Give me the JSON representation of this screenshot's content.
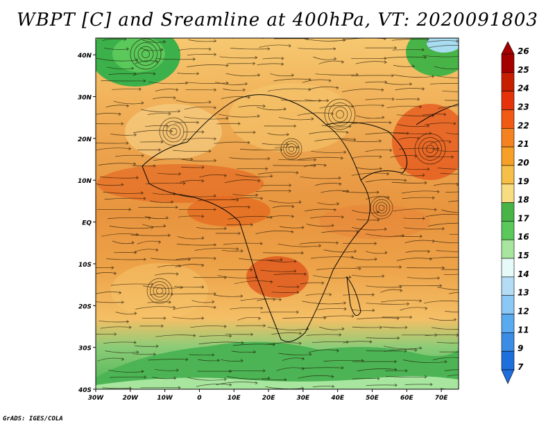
{
  "title": "WBPT [C] and Sreamline at 400hPa, VT: 2020091803",
  "credit": "GrADS: IGES/COLA",
  "map": {
    "lat_labels": [
      "40N",
      "30N",
      "20N",
      "10N",
      "EQ",
      "10S",
      "20S",
      "30S",
      "40S"
    ],
    "lon_labels": [
      "30W",
      "20W",
      "10W",
      "0",
      "10E",
      "20E",
      "30E",
      "40E",
      "50E",
      "60E",
      "70E"
    ],
    "lat_range": [
      -40,
      44
    ],
    "lon_range": [
      -30,
      75
    ]
  },
  "colorbar": {
    "labels": [
      "26",
      "25",
      "24",
      "23",
      "22",
      "21",
      "20",
      "19",
      "18",
      "17",
      "16",
      "15",
      "14",
      "13",
      "12",
      "11",
      "9",
      "7"
    ],
    "colors": [
      "#a50000",
      "#c81e00",
      "#e6320a",
      "#f05a14",
      "#f58220",
      "#f7a028",
      "#f5bf4a",
      "#f8dc82",
      "#48b448",
      "#5ac85a",
      "#a8e6a0",
      "#e6fafa",
      "#b4dcf5",
      "#8cc8f5",
      "#5aaaf0",
      "#3c8ce6",
      "#1e6edc"
    ]
  }
}
